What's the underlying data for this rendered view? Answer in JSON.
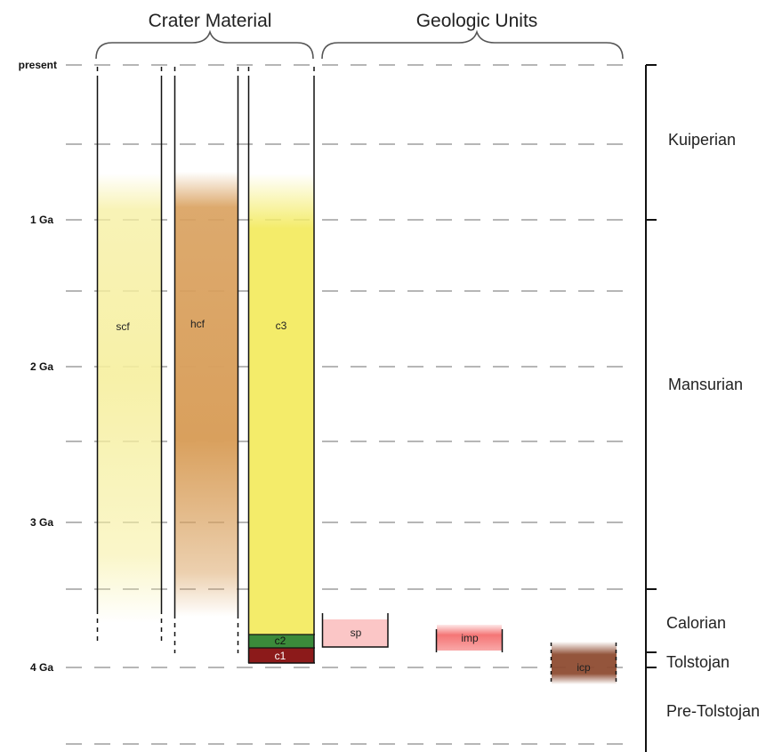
{
  "headers": {
    "crater_material": "Crater Material",
    "geologic_units": "Geologic Units"
  },
  "time_labels": [
    "present",
    "1 Ga",
    "2 Ga",
    "3 Ga",
    "4 Ga"
  ],
  "periods": [
    "Kuiperian",
    "Mansurian",
    "Calorian",
    "Tolstojan",
    "Pre-Tolstojan"
  ],
  "columns": [
    "scf",
    "hcf",
    "c3"
  ],
  "strata": [
    "c2",
    "c1"
  ],
  "units": [
    "sp",
    "imp",
    "icp"
  ],
  "colors": {
    "scf": "#f6ef9e",
    "hcf": "#d9a05d",
    "c3": "#f4ec6a",
    "c2": "#3b8a3a",
    "c1": "#8c1a1a",
    "sp": "#fbc6c6",
    "imp": "#f46e6e",
    "icp": "#8e4c32",
    "grid": "#8a8a8a"
  }
}
